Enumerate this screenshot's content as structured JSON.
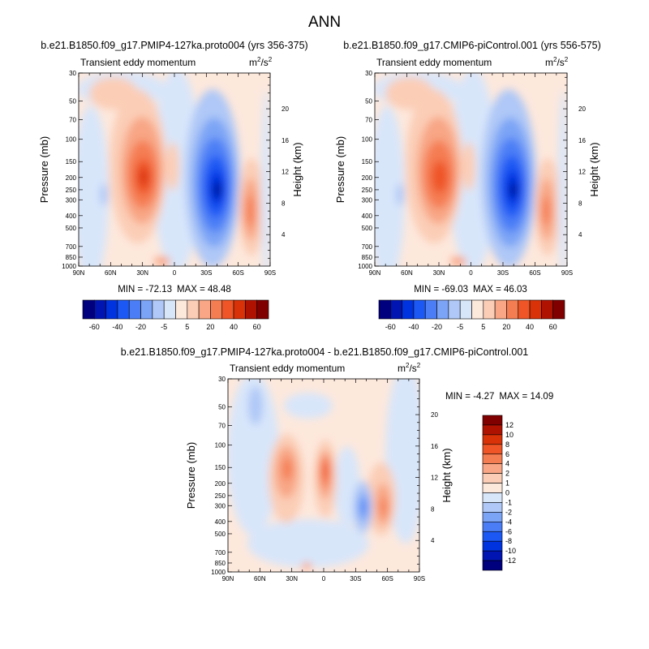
{
  "figure": {
    "season": "ANN",
    "panel_title": "Transient eddy momentum",
    "units_base": "m",
    "units_sup1": "2",
    "units_mid": "/s",
    "units_sup2": "2"
  },
  "panels": [
    {
      "case": "b.e21.B1850.f09_g17.PMIP4-127ka.proto004 (yrs 356-375)",
      "min_label": "MIN = ",
      "min_value": "-72.13",
      "max_label": "MAX = ",
      "max_value": "48.48"
    },
    {
      "case": "b.e21.B1850.f09_g17.CMIP6-piControl.001 (yrs 556-575)",
      "min_label": "MIN = ",
      "min_value": "-69.03",
      "max_label": "MAX = ",
      "max_value": "46.03"
    },
    {
      "case": "b.e21.B1850.f09_g17.PMIP4-127ka.proto004 - b.e21.B1850.f09_g17.CMIP6-piControl.001",
      "min_label": "MIN = ",
      "min_value": "-4.27",
      "max_label": "MAX = ",
      "max_value": "14.09"
    }
  ],
  "colors": {
    "scale": [
      "#00007f",
      "#0015b2",
      "#0033e0",
      "#1b58f4",
      "#4b7ef6",
      "#7ca4f6",
      "#afc8f7",
      "#d8e6fa",
      "#fde8dc",
      "#fbcdb6",
      "#f8a685",
      "#f57d52",
      "#ef5526",
      "#d93208",
      "#b01202",
      "#800000"
    ]
  },
  "chart_data": [
    {
      "type": "contour",
      "title": "b.e21.B1850.f09_g17.PMIP4-127ka.proto004 (yrs 356-375)",
      "variable": "Transient eddy momentum",
      "units": "m2/s2",
      "x": [
        "90N",
        "60N",
        "30N",
        "0",
        "30S",
        "60S",
        "90S"
      ],
      "y_pressure": [
        30,
        50,
        70,
        100,
        150,
        200,
        250,
        300,
        400,
        500,
        700,
        850,
        1000
      ],
      "ylabel": "Pressure (mb)",
      "y2": [
        20,
        16,
        12,
        8,
        4
      ],
      "y2label": "Height (km)",
      "levels": [
        -60,
        -50,
        -40,
        -30,
        -20,
        -10,
        -5,
        0,
        5,
        10,
        20,
        30,
        40,
        50,
        60
      ],
      "colorbar_labels": [
        "-60",
        "-40",
        "-20",
        "-5",
        "5",
        "20",
        "40",
        "60"
      ],
      "min": -72.13,
      "max": 48.48,
      "features": [
        {
          "lat": 28,
          "pressure": 200,
          "value": 45
        },
        {
          "lat": 12,
          "pressure": 190,
          "value": 12
        },
        {
          "lat": -42,
          "pressure": 230,
          "value": -72
        },
        {
          "lat": -70,
          "pressure": 300,
          "value": 28
        },
        {
          "lat": 62,
          "pressure": 60,
          "value": 10
        },
        {
          "lat": 75,
          "pressure": 250,
          "value": -7
        }
      ]
    },
    {
      "type": "contour",
      "title": "b.e21.B1850.f09_g17.CMIP6-piControl.001 (yrs 556-575)",
      "variable": "Transient eddy momentum",
      "units": "m2/s2",
      "x": [
        "90N",
        "60N",
        "30N",
        "0",
        "30S",
        "60S",
        "90S"
      ],
      "y_pressure": [
        30,
        50,
        70,
        100,
        150,
        200,
        250,
        300,
        400,
        500,
        700,
        850,
        1000
      ],
      "ylabel": "Pressure (mb)",
      "y2": [
        20,
        16,
        12,
        8,
        4
      ],
      "y2label": "Height (km)",
      "levels": [
        -60,
        -50,
        -40,
        -30,
        -20,
        -10,
        -5,
        0,
        5,
        10,
        20,
        30,
        40,
        50,
        60
      ],
      "colorbar_labels": [
        "-60",
        "-40",
        "-20",
        "-5",
        "5",
        "20",
        "40",
        "60"
      ],
      "min": -69.03,
      "max": 46.03,
      "features": [
        {
          "lat": 28,
          "pressure": 200,
          "value": 42
        },
        {
          "lat": 12,
          "pressure": 190,
          "value": 10
        },
        {
          "lat": -42,
          "pressure": 230,
          "value": -69
        },
        {
          "lat": -70,
          "pressure": 300,
          "value": 25
        },
        {
          "lat": 62,
          "pressure": 60,
          "value": 9
        },
        {
          "lat": 75,
          "pressure": 250,
          "value": -7
        }
      ]
    },
    {
      "type": "contour",
      "title": "b.e21.B1850.f09_g17.PMIP4-127ka.proto004 - b.e21.B1850.f09_g17.CMIP6-piControl.001",
      "variable": "Transient eddy momentum",
      "units": "m2/s2",
      "x": [
        "90N",
        "60N",
        "30N",
        "0",
        "30S",
        "60S",
        "90S"
      ],
      "y_pressure": [
        30,
        50,
        70,
        100,
        150,
        200,
        250,
        300,
        400,
        500,
        700,
        850,
        1000
      ],
      "ylabel": "Pressure (mb)",
      "y2": [
        20,
        16,
        12,
        8,
        4
      ],
      "y2label": "Height (km)",
      "levels": [
        -12,
        -10,
        -8,
        -6,
        -4,
        -2,
        -1,
        0,
        1,
        2,
        4,
        6,
        8,
        10,
        12
      ],
      "colorbar_labels": [
        "12",
        "10",
        "8",
        "6",
        "4",
        "2",
        "1",
        "0",
        "-1",
        "-2",
        "-4",
        "-6",
        "-8",
        "-10",
        "-12"
      ],
      "min": -4.27,
      "max": 14.09,
      "features": [
        {
          "lat": 33,
          "pressure": 190,
          "value": 5
        },
        {
          "lat": 2,
          "pressure": 170,
          "value": 10
        },
        {
          "lat": -38,
          "pressure": 330,
          "value": -4
        },
        {
          "lat": -63,
          "pressure": 300,
          "value": 5
        },
        {
          "lat": 70,
          "pressure": 50,
          "value": -2
        },
        {
          "lat": 5,
          "pressure": 800,
          "value": -1.5
        }
      ]
    }
  ]
}
